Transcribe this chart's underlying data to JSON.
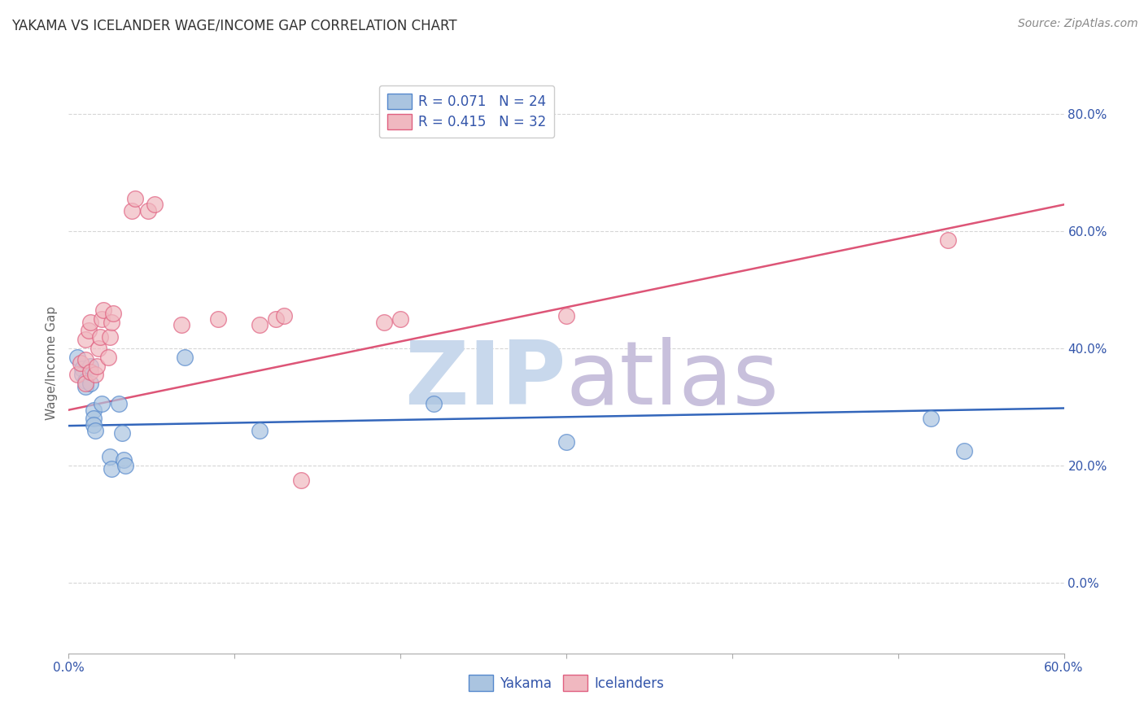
{
  "title": "YAKAMA VS ICELANDER WAGE/INCOME GAP CORRELATION CHART",
  "source": "Source: ZipAtlas.com",
  "ylabel": "Wage/Income Gap",
  "x_tick_vals": [
    0.0,
    0.1,
    0.2,
    0.3,
    0.4,
    0.5,
    0.6
  ],
  "x_tick_labels_edge": [
    "0.0%",
    "",
    "",
    "",
    "",
    "",
    "60.0%"
  ],
  "y_tick_vals": [
    0.0,
    0.2,
    0.4,
    0.6,
    0.8
  ],
  "y_tick_labels": [
    "0.0%",
    "20.0%",
    "40.0%",
    "60.0%",
    "80.0%"
  ],
  "xmin": 0.0,
  "xmax": 0.6,
  "ymin": -0.12,
  "ymax": 0.87,
  "legend_entries": [
    {
      "label": "R = 0.071   N = 24",
      "color": "#aac4e0"
    },
    {
      "label": "R = 0.415   N = 32",
      "color": "#f0b8c0"
    }
  ],
  "legend_bottom": [
    "Yakama",
    "Icelanders"
  ],
  "yakama_scatter": [
    [
      0.005,
      0.385
    ],
    [
      0.008,
      0.365
    ],
    [
      0.008,
      0.355
    ],
    [
      0.01,
      0.345
    ],
    [
      0.01,
      0.335
    ],
    [
      0.013,
      0.37
    ],
    [
      0.013,
      0.34
    ],
    [
      0.015,
      0.295
    ],
    [
      0.015,
      0.28
    ],
    [
      0.015,
      0.27
    ],
    [
      0.016,
      0.26
    ],
    [
      0.02,
      0.305
    ],
    [
      0.025,
      0.215
    ],
    [
      0.026,
      0.195
    ],
    [
      0.03,
      0.305
    ],
    [
      0.032,
      0.255
    ],
    [
      0.033,
      0.21
    ],
    [
      0.034,
      0.2
    ],
    [
      0.07,
      0.385
    ],
    [
      0.115,
      0.26
    ],
    [
      0.22,
      0.305
    ],
    [
      0.3,
      0.24
    ],
    [
      0.52,
      0.28
    ],
    [
      0.54,
      0.225
    ]
  ],
  "icelander_scatter": [
    [
      0.005,
      0.355
    ],
    [
      0.007,
      0.375
    ],
    [
      0.01,
      0.34
    ],
    [
      0.01,
      0.38
    ],
    [
      0.01,
      0.415
    ],
    [
      0.012,
      0.43
    ],
    [
      0.013,
      0.445
    ],
    [
      0.013,
      0.36
    ],
    [
      0.016,
      0.355
    ],
    [
      0.017,
      0.37
    ],
    [
      0.018,
      0.4
    ],
    [
      0.019,
      0.42
    ],
    [
      0.02,
      0.45
    ],
    [
      0.021,
      0.465
    ],
    [
      0.024,
      0.385
    ],
    [
      0.025,
      0.42
    ],
    [
      0.026,
      0.445
    ],
    [
      0.027,
      0.46
    ],
    [
      0.038,
      0.635
    ],
    [
      0.04,
      0.655
    ],
    [
      0.048,
      0.635
    ],
    [
      0.052,
      0.645
    ],
    [
      0.068,
      0.44
    ],
    [
      0.09,
      0.45
    ],
    [
      0.115,
      0.44
    ],
    [
      0.125,
      0.45
    ],
    [
      0.13,
      0.455
    ],
    [
      0.14,
      0.175
    ],
    [
      0.19,
      0.445
    ],
    [
      0.2,
      0.45
    ],
    [
      0.3,
      0.455
    ],
    [
      0.53,
      0.585
    ]
  ],
  "yakama_line_x": [
    0.0,
    0.6
  ],
  "yakama_line_y": [
    0.268,
    0.298
  ],
  "icelander_line_x": [
    0.0,
    0.6
  ],
  "icelander_line_y": [
    0.295,
    0.645
  ],
  "yakama_color": "#aac4e0",
  "icelander_color": "#f0b8c0",
  "yakama_edge_color": "#5588cc",
  "icelander_edge_color": "#e06080",
  "yakama_line_color": "#3366bb",
  "icelander_line_color": "#dd5577",
  "background_color": "#ffffff",
  "grid_color": "#cccccc",
  "title_color": "#333333",
  "axis_label_color": "#3355aa",
  "source_color": "#888888",
  "watermark_zip_color": "#c8d8ec",
  "watermark_atlas_color": "#c8c0dc",
  "legend_text_color": "#3355aa"
}
